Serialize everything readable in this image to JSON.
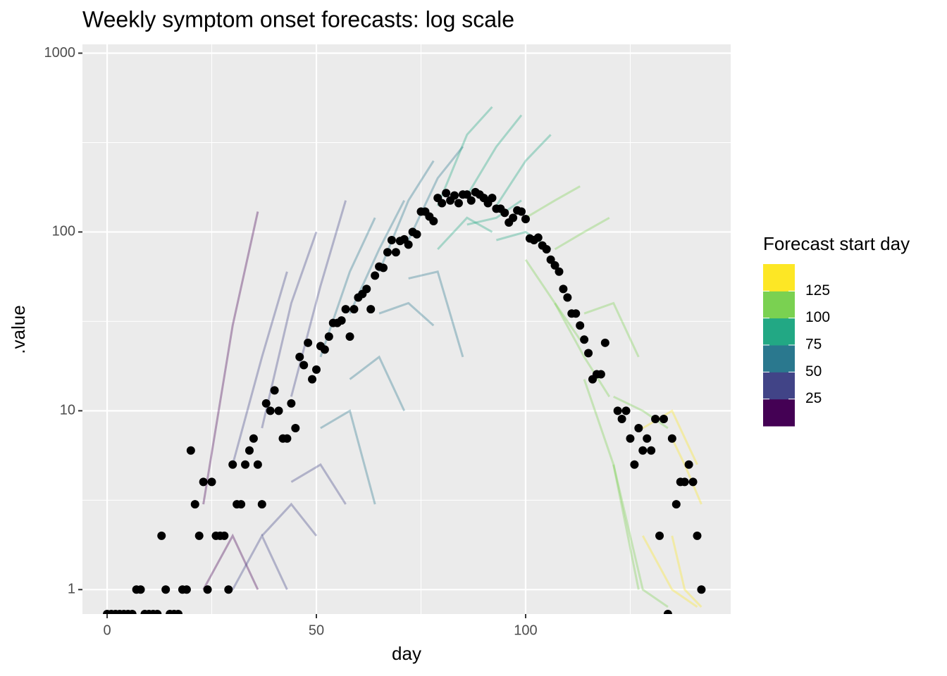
{
  "chart_data": {
    "type": "scatter",
    "title": "Weekly symptom onset forecasts: log scale",
    "x_label": "day",
    "y_label": ".value",
    "log_y": true,
    "grid": true,
    "xlim": [
      -5.9,
      149
    ],
    "ylim": [
      0.73,
      1120
    ],
    "xticks": [
      0,
      50,
      100
    ],
    "yticks": [
      1,
      10,
      100,
      1000
    ],
    "xminor": [
      25,
      75,
      125
    ],
    "yminor": [
      3.162,
      31.62,
      316.2
    ],
    "point_color": "#000000",
    "x": [
      0,
      1,
      2,
      3,
      4,
      5,
      6,
      7,
      8,
      9,
      10,
      11,
      12,
      13,
      14,
      15,
      16,
      17,
      18,
      19,
      20,
      21,
      22,
      23,
      24,
      25,
      26,
      27,
      28,
      29,
      30,
      31,
      32,
      33,
      34,
      35,
      36,
      37,
      38,
      39,
      40,
      41,
      42,
      43,
      44,
      45,
      46,
      47,
      48,
      49,
      50,
      51,
      52,
      53,
      54,
      55,
      56,
      57,
      58,
      59,
      60,
      61,
      62,
      63,
      64,
      65,
      66,
      67,
      68,
      69,
      70,
      71,
      72,
      73,
      74,
      75,
      76,
      77,
      78,
      79,
      80,
      81,
      82,
      83,
      84,
      85,
      86,
      87,
      88,
      89,
      90,
      91,
      92,
      93,
      94,
      95,
      96,
      97,
      98,
      99,
      100,
      101,
      102,
      103,
      104,
      105,
      106,
      107,
      108,
      109,
      110,
      111,
      112,
      113,
      114,
      115,
      116,
      117,
      118,
      119,
      122,
      123,
      124,
      125,
      126,
      127,
      128,
      129,
      130,
      131,
      132,
      133,
      134,
      135,
      136,
      137,
      138,
      139,
      140,
      141,
      142
    ],
    "values": [
      0,
      0,
      0,
      0,
      0,
      0,
      0,
      1,
      1,
      0,
      0,
      0,
      0,
      2,
      1,
      0,
      0,
      0,
      1,
      1,
      6,
      3,
      2,
      4,
      1,
      4,
      2,
      2,
      2,
      1,
      5,
      3,
      3,
      5,
      6,
      7,
      5,
      3,
      11,
      10,
      13,
      10,
      7,
      7,
      11,
      8,
      20,
      18,
      24,
      15,
      17,
      23,
      22,
      26,
      31,
      31,
      32,
      37,
      26,
      37,
      43,
      45,
      48,
      37,
      57,
      64,
      63,
      77,
      90,
      77,
      89,
      91,
      85,
      100,
      97,
      130,
      130,
      122,
      115,
      155,
      145,
      165,
      150,
      160,
      145,
      162,
      162,
      150,
      167,
      162,
      155,
      145,
      155,
      135,
      135,
      128,
      113,
      120,
      132,
      130,
      118,
      92,
      90,
      93,
      84,
      80,
      70,
      65,
      60,
      48,
      43,
      35,
      35,
      30,
      25,
      21,
      15,
      16,
      16,
      24,
      10,
      9,
      10,
      7,
      5,
      8,
      6,
      7,
      6,
      9,
      2,
      9,
      0,
      7,
      3,
      4,
      4,
      5,
      4,
      2,
      1
    ],
    "forecasts": [
      {
        "start": 23,
        "x": [
          23,
          30,
          36
        ],
        "values": [
          3,
          30,
          130
        ]
      },
      {
        "start": 23,
        "x": [
          23,
          30,
          36
        ],
        "values": [
          1,
          2,
          1
        ]
      },
      {
        "start": 30,
        "x": [
          30,
          37,
          43
        ],
        "values": [
          5,
          20,
          60
        ]
      },
      {
        "start": 30,
        "x": [
          30,
          37,
          43
        ],
        "values": [
          1,
          2,
          1
        ]
      },
      {
        "start": 37,
        "x": [
          37,
          44,
          50
        ],
        "values": [
          8,
          40,
          100
        ]
      },
      {
        "start": 37,
        "x": [
          37,
          44,
          50
        ],
        "values": [
          2,
          3,
          2
        ]
      },
      {
        "start": 44,
        "x": [
          44,
          51,
          57
        ],
        "values": [
          12,
          50,
          150
        ]
      },
      {
        "start": 44,
        "x": [
          44,
          51,
          57
        ],
        "values": [
          4,
          5,
          3
        ]
      },
      {
        "start": 51,
        "x": [
          51,
          58,
          64
        ],
        "values": [
          20,
          60,
          120
        ]
      },
      {
        "start": 51,
        "x": [
          51,
          58,
          64
        ],
        "values": [
          8,
          10,
          3
        ]
      },
      {
        "start": 58,
        "x": [
          58,
          65,
          71
        ],
        "values": [
          35,
          80,
          150
        ]
      },
      {
        "start": 58,
        "x": [
          58,
          65,
          71
        ],
        "values": [
          15,
          20,
          10
        ]
      },
      {
        "start": 65,
        "x": [
          65,
          72,
          78
        ],
        "values": [
          60,
          150,
          250
        ]
      },
      {
        "start": 65,
        "x": [
          65,
          72,
          78
        ],
        "values": [
          35,
          40,
          30
        ]
      },
      {
        "start": 72,
        "x": [
          72,
          79,
          85
        ],
        "values": [
          90,
          200,
          300
        ]
      },
      {
        "start": 72,
        "x": [
          72,
          79,
          85
        ],
        "values": [
          55,
          60,
          20
        ]
      },
      {
        "start": 79,
        "x": [
          79,
          86,
          92
        ],
        "values": [
          140,
          350,
          500
        ]
      },
      {
        "start": 79,
        "x": [
          79,
          86,
          92
        ],
        "values": [
          80,
          120,
          100
        ]
      },
      {
        "start": 86,
        "x": [
          86,
          93,
          99
        ],
        "values": [
          160,
          300,
          450
        ]
      },
      {
        "start": 86,
        "x": [
          86,
          93,
          99
        ],
        "values": [
          110,
          120,
          150
        ]
      },
      {
        "start": 93,
        "x": [
          93,
          100,
          106
        ],
        "values": [
          140,
          250,
          350
        ]
      },
      {
        "start": 93,
        "x": [
          93,
          100,
          106
        ],
        "values": [
          90,
          100,
          80
        ]
      },
      {
        "start": 100,
        "x": [
          100,
          107,
          113
        ],
        "values": [
          120,
          150,
          180
        ]
      },
      {
        "start": 100,
        "x": [
          100,
          107,
          113
        ],
        "values": [
          70,
          40,
          25
        ]
      },
      {
        "start": 107,
        "x": [
          107,
          114,
          120
        ],
        "values": [
          80,
          100,
          120
        ]
      },
      {
        "start": 107,
        "x": [
          107,
          114,
          120
        ],
        "values": [
          40,
          20,
          12
        ]
      },
      {
        "start": 114,
        "x": [
          114,
          121,
          127
        ],
        "values": [
          35,
          40,
          20
        ]
      },
      {
        "start": 114,
        "x": [
          114,
          121,
          127
        ],
        "values": [
          15,
          5,
          1
        ]
      },
      {
        "start": 121,
        "x": [
          121,
          128,
          134
        ],
        "values": [
          12,
          10,
          8
        ]
      },
      {
        "start": 121,
        "x": [
          121,
          128,
          134
        ],
        "values": [
          5,
          1,
          0.8
        ]
      },
      {
        "start": 128,
        "x": [
          128,
          135,
          141
        ],
        "values": [
          8,
          10,
          5
        ]
      },
      {
        "start": 128,
        "x": [
          128,
          135,
          141
        ],
        "values": [
          2,
          1,
          0.8
        ]
      },
      {
        "start": 135,
        "x": [
          135,
          138,
          142
        ],
        "values": [
          7,
          5,
          3
        ]
      },
      {
        "start": 135,
        "x": [
          135,
          138,
          142
        ],
        "values": [
          2,
          1,
          0.8
        ]
      }
    ],
    "legend_title": "Forecast start day",
    "colorbar": {
      "lim": [
        0,
        150
      ],
      "breaks": [
        25,
        50,
        75,
        100,
        125
      ],
      "colors": [
        "#440154",
        "#414487",
        "#2A788E",
        "#22A884",
        "#7AD151",
        "#FDE725"
      ]
    }
  }
}
